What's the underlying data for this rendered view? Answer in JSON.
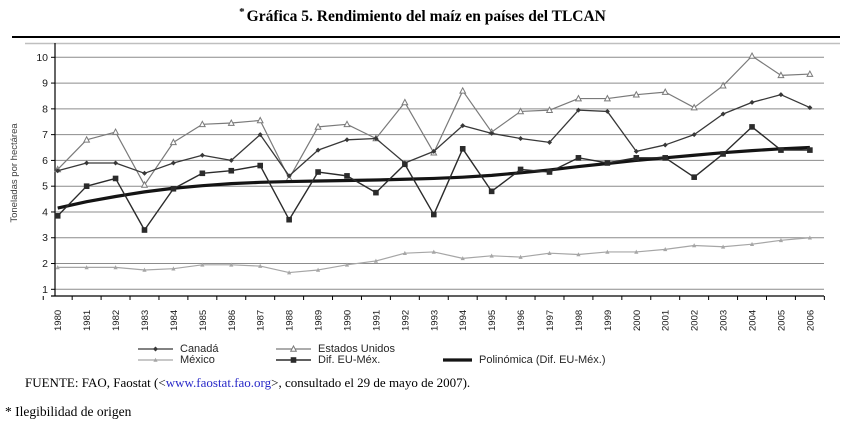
{
  "title": {
    "note_marker": "*",
    "text": "Gráfica 5. Rendimiento del maíz en países del TLCAN"
  },
  "chart_data": {
    "type": "line",
    "title": "Gráfica 5. Rendimiento del maíz en países del TLCAN",
    "xlabel": "",
    "ylabel": "Toneladas por hectárea",
    "ylim": [
      1,
      10
    ],
    "yticks": [
      1,
      2,
      3,
      4,
      5,
      6,
      7,
      8,
      9,
      10
    ],
    "grid": "horizontal",
    "legend_position": "bottom",
    "x": [
      "1980",
      "1981",
      "1982",
      "1983",
      "1984",
      "1985",
      "1986",
      "1987",
      "1988",
      "1989",
      "1990",
      "1991",
      "1992",
      "1993",
      "1994",
      "1995",
      "1996",
      "1997",
      "1998",
      "1999",
      "2000",
      "2001",
      "2002",
      "2003",
      "2004",
      "2005",
      "2006"
    ],
    "series": [
      {
        "name": "México",
        "color": "#a6a6a6",
        "marker": "triangle",
        "stroke_width": 1.2,
        "values": [
          1.85,
          1.85,
          1.85,
          1.75,
          1.8,
          1.95,
          1.95,
          1.9,
          1.65,
          1.75,
          1.95,
          2.1,
          2.4,
          2.45,
          2.2,
          2.3,
          2.25,
          2.4,
          2.35,
          2.45,
          2.45,
          2.55,
          2.7,
          2.65,
          2.75,
          2.9,
          3.0
        ]
      },
      {
        "name": "Estados Unidos",
        "color": "#7a7a7a",
        "marker": "triangle-open",
        "stroke_width": 1.2,
        "values": [
          5.65,
          6.8,
          7.1,
          5.05,
          6.7,
          7.4,
          7.45,
          7.55,
          5.3,
          7.3,
          7.4,
          6.85,
          8.25,
          6.3,
          8.7,
          7.1,
          7.9,
          7.95,
          8.4,
          8.4,
          8.55,
          8.65,
          8.05,
          8.9,
          10.05,
          9.3,
          9.35
        ]
      },
      {
        "name": "Canadá",
        "color": "#383838",
        "marker": "diamond",
        "stroke_width": 1.3,
        "values": [
          5.6,
          5.9,
          5.9,
          5.5,
          5.9,
          6.2,
          6.0,
          7.0,
          5.4,
          6.4,
          6.8,
          6.85,
          5.9,
          6.35,
          7.35,
          7.05,
          6.85,
          6.7,
          7.95,
          7.9,
          6.35,
          6.6,
          7.0,
          7.8,
          8.25,
          8.55,
          8.05
        ]
      },
      {
        "name": "Polinómica (Dif. EU-Méx.)",
        "color": "#141414",
        "marker": "none",
        "stroke_width": 3.2,
        "values": [
          4.15,
          4.4,
          4.6,
          4.78,
          4.92,
          5.02,
          5.1,
          5.15,
          5.18,
          5.2,
          5.22,
          5.24,
          5.27,
          5.3,
          5.35,
          5.42,
          5.52,
          5.63,
          5.76,
          5.88,
          6.0,
          6.1,
          6.2,
          6.3,
          6.38,
          6.45,
          6.5
        ]
      },
      {
        "name": "Dif. EU-Méx.",
        "color": "#2b2b2b",
        "marker": "square",
        "stroke_width": 1.4,
        "values": [
          3.85,
          5.0,
          5.3,
          3.3,
          4.9,
          5.5,
          5.6,
          5.8,
          3.7,
          5.55,
          5.4,
          4.75,
          5.85,
          3.9,
          6.45,
          4.8,
          5.65,
          5.55,
          6.1,
          5.9,
          6.1,
          6.1,
          5.35,
          6.25,
          7.3,
          6.4,
          6.4
        ]
      }
    ]
  },
  "source": {
    "label": "FUENTE:",
    "pre": " FAO, Faostat (<",
    "link": "www.faostat.fao.org",
    "post": ">, consultado el 29 de mayo de 2007)."
  },
  "footnote": {
    "text": "* Ilegibilidad de origen"
  }
}
